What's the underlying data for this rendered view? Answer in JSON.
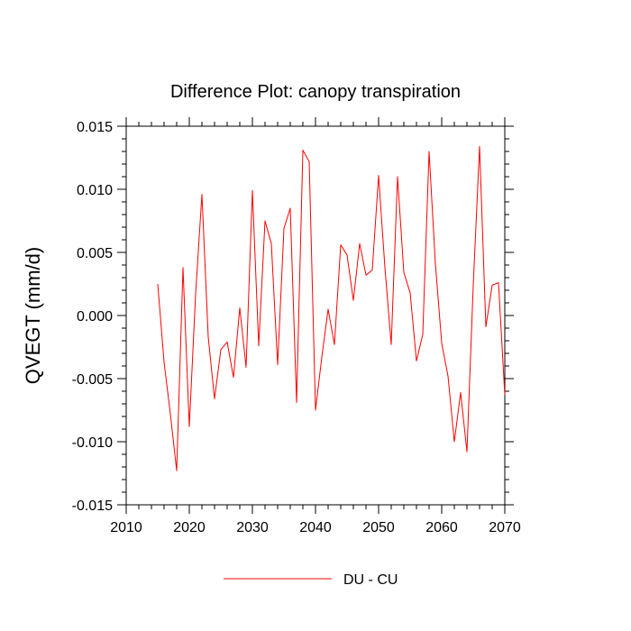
{
  "chart_data": {
    "type": "line",
    "title": "Difference Plot: canopy transpiration",
    "xlabel": "",
    "ylabel": "QVEGT  (mm/d)",
    "xlim": [
      2010,
      2070
    ],
    "ylim": [
      -0.015,
      0.015
    ],
    "x_ticks": [
      2010,
      2020,
      2030,
      2040,
      2050,
      2060,
      2070
    ],
    "x_tick_labels": [
      "2010",
      "2020",
      "2030",
      "2040",
      "2050",
      "2060",
      "2070"
    ],
    "y_ticks": [
      -0.015,
      -0.01,
      -0.005,
      0.0,
      0.005,
      0.01,
      0.015
    ],
    "y_tick_labels": [
      "-0.015",
      "-0.010",
      "-0.005",
      "0.000",
      "0.005",
      "0.010",
      "0.015"
    ],
    "legend_position": "bottom-center",
    "series": [
      {
        "name": "DU - CU",
        "color": "#ff0000",
        "x": [
          2015,
          2016,
          2017,
          2018,
          2019,
          2020,
          2021,
          2022,
          2023,
          2024,
          2025,
          2026,
          2027,
          2028,
          2029,
          2030,
          2031,
          2032,
          2033,
          2034,
          2035,
          2036,
          2037,
          2038,
          2039,
          2040,
          2041,
          2042,
          2043,
          2044,
          2045,
          2046,
          2047,
          2048,
          2049,
          2050,
          2051,
          2052,
          2053,
          2054,
          2055,
          2056,
          2057,
          2058,
          2059,
          2060,
          2061,
          2062,
          2063,
          2064,
          2065,
          2066,
          2067,
          2068,
          2069,
          2070
        ],
        "values": [
          0.0025,
          -0.0037,
          -0.0078,
          -0.0123,
          0.0038,
          -0.0088,
          0.0017,
          0.0096,
          -0.0017,
          -0.0066,
          -0.0027,
          -0.0021,
          -0.0049,
          0.0006,
          -0.0041,
          0.0099,
          -0.0024,
          0.0075,
          0.0057,
          -0.0039,
          0.0069,
          0.0085,
          -0.0069,
          0.0131,
          0.0122,
          -0.0075,
          -0.0033,
          0.0005,
          -0.0023,
          0.0056,
          0.0048,
          0.0012,
          0.0057,
          0.0032,
          0.0036,
          0.0111,
          0.0038,
          -0.0023,
          0.011,
          0.0034,
          0.0018,
          -0.0036,
          -0.0015,
          0.013,
          0.0041,
          -0.0022,
          -0.0048,
          -0.01,
          -0.0061,
          -0.0108,
          0.0024,
          0.0134,
          -0.0009,
          0.0024,
          0.0026,
          -0.0063
        ]
      }
    ]
  }
}
